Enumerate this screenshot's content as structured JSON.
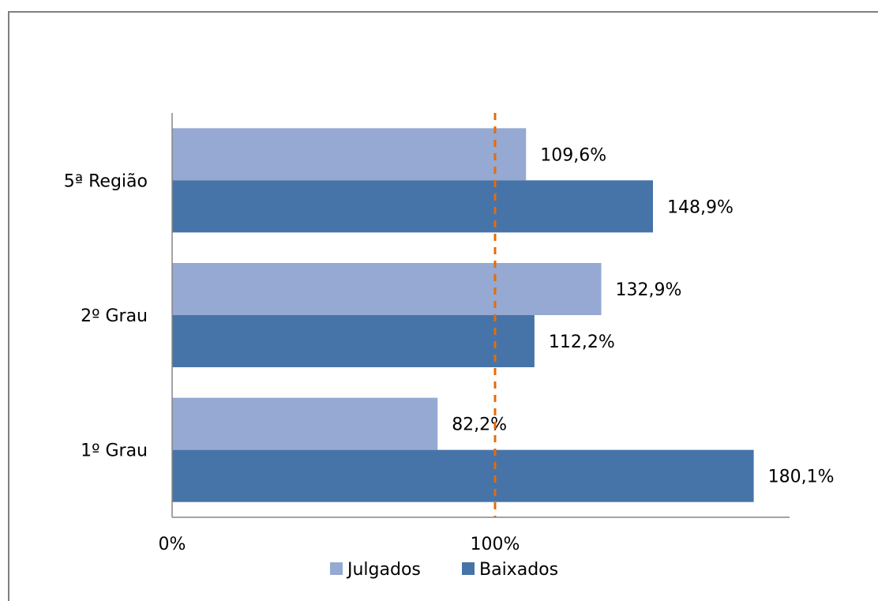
{
  "chart_data": {
    "type": "bar",
    "orientation": "horizontal",
    "categories": [
      "5ª Região",
      "2º Grau",
      "1º Grau"
    ],
    "series": [
      {
        "name": "Julgados",
        "values": [
          109.6,
          132.9,
          82.2
        ],
        "labels": [
          "109,6%",
          "132,9%",
          "82,2%"
        ],
        "color": "#95A9D2"
      },
      {
        "name": "Baixados",
        "values": [
          148.9,
          112.2,
          180.1
        ],
        "labels": [
          "148,9%",
          "112,2%",
          "180,1%"
        ],
        "color": "#4674A8"
      }
    ],
    "xlim": [
      0,
      190
    ],
    "xticks": [
      {
        "value": 0,
        "label": "0%"
      },
      {
        "value": 100,
        "label": "100%"
      }
    ],
    "reference_line": {
      "value": 100,
      "color": "#E46C0A",
      "style": "dashed"
    },
    "legend": {
      "position": "bottom"
    },
    "grid": false
  }
}
